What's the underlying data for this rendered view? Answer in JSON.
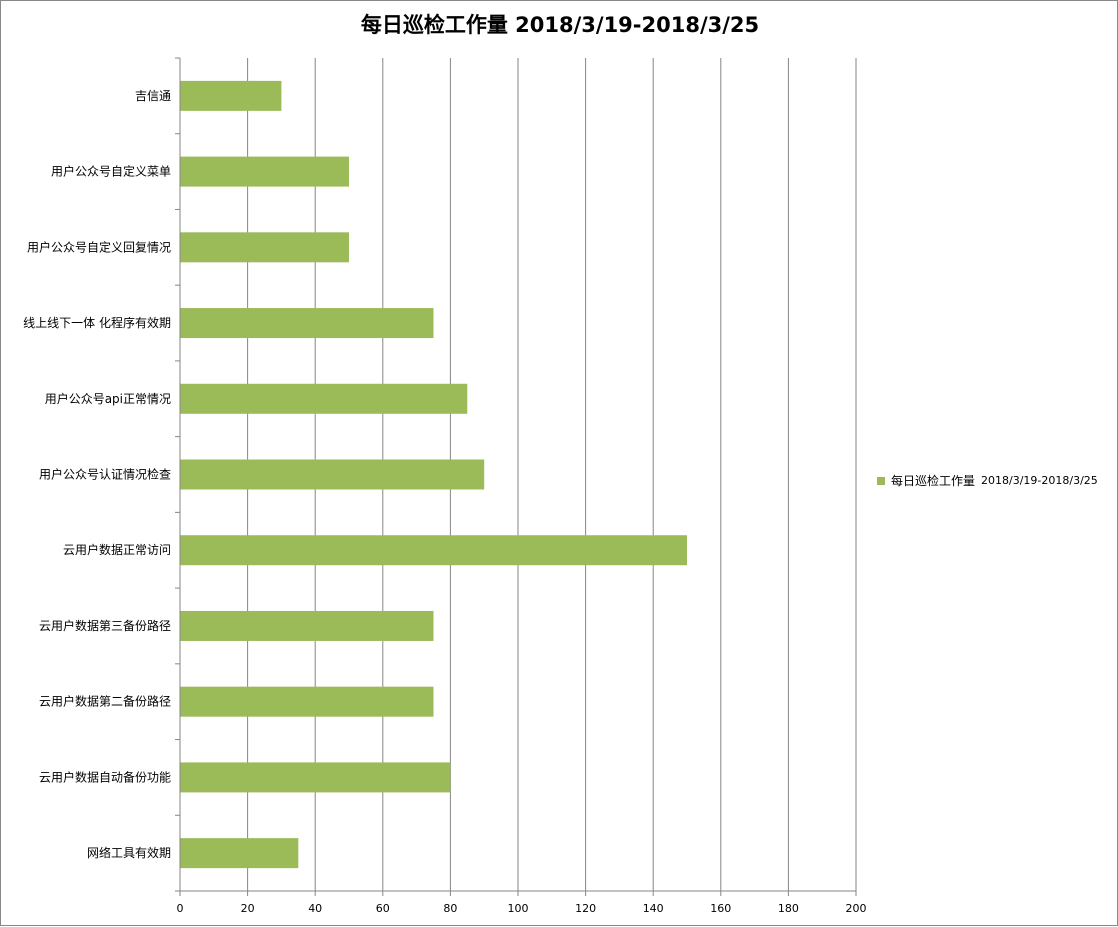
{
  "chart_data": {
    "type": "bar",
    "orientation": "horizontal",
    "title": "每日巡检工作量 2018/3/19-2018/3/25",
    "categories": [
      "吉信通",
      "用户公众号自定义菜单",
      "用户公众号自定义回复情况",
      "线上线下一体 化程序有效期",
      "用户公众号api正常情况",
      "用户公众号认证情况检查",
      "云用户数据正常访问",
      "云用户数据第三备份路径",
      "云用户数据第二备份路径",
      "云用户数据自动备份功能",
      "网络工具有效期"
    ],
    "series": [
      {
        "name": "每日巡检工作量 2018/3/19-2018/3/25",
        "values": [
          30,
          50,
          50,
          75,
          85,
          90,
          150,
          75,
          75,
          80,
          35
        ],
        "color": "#9bbb59"
      }
    ],
    "xlim": [
      0,
      200
    ],
    "x_ticks": [
      "0",
      "20",
      "40",
      "60",
      "80",
      "100",
      "120",
      "140",
      "160",
      "180",
      "200"
    ],
    "grid": "vertical",
    "legend_position": "right",
    "legend": {
      "name": "每日巡检工作量",
      "range": "2018/3/19-2018/3/25"
    }
  }
}
